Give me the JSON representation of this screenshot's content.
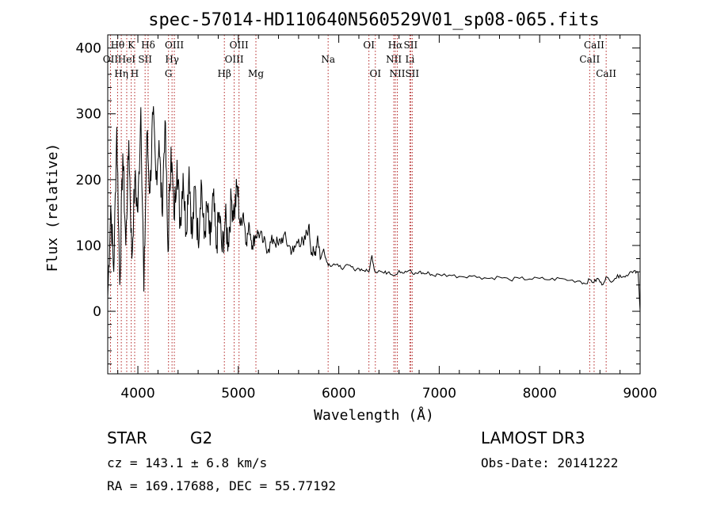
{
  "chart_data": {
    "type": "line",
    "title": "spec-57014-HD110640N560529V01_sp08-065.fits",
    "xlabel": "Wavelength (Å)",
    "ylabel": "Flux (relative)",
    "xlim": [
      3700,
      9000
    ],
    "ylim": [
      -95,
      420
    ],
    "x_ticks": [
      4000,
      5000,
      6000,
      7000,
      8000,
      9000
    ],
    "y_ticks": [
      0,
      100,
      200,
      300,
      400
    ],
    "series": [
      {
        "name": "flux",
        "color": "#000000",
        "x": [
          3700,
          3730,
          3760,
          3790,
          3820,
          3850,
          3880,
          3910,
          3940,
          3970,
          4000,
          4030,
          4060,
          4090,
          4120,
          4150,
          4180,
          4210,
          4240,
          4270,
          4300,
          4330,
          4360,
          4390,
          4420,
          4450,
          4480,
          4510,
          4540,
          4570,
          4600,
          4630,
          4660,
          4690,
          4720,
          4750,
          4780,
          4810,
          4840,
          4870,
          4900,
          4930,
          4960,
          4990,
          5020,
          5050,
          5080,
          5110,
          5140,
          5170,
          5200,
          5250,
          5300,
          5350,
          5400,
          5450,
          5500,
          5550,
          5600,
          5650,
          5700,
          5730,
          5760,
          5790,
          5820,
          5850,
          5880,
          5910,
          5950,
          6000,
          6050,
          6100,
          6150,
          6200,
          6250,
          6300,
          6330,
          6360,
          6400,
          6450,
          6500,
          6560,
          6600,
          6650,
          6700,
          6750,
          6800,
          6850,
          6900,
          6950,
          7000,
          7100,
          7200,
          7300,
          7400,
          7500,
          7600,
          7700,
          7800,
          7900,
          8000,
          8100,
          8200,
          8300,
          8400,
          8450,
          8500,
          8540,
          8580,
          8620,
          8660,
          8700,
          8750,
          8800,
          8850,
          8900,
          8950,
          8980,
          9000
        ],
        "values": [
          20,
          160,
          60,
          280,
          40,
          240,
          100,
          260,
          80,
          200,
          150,
          310,
          30,
          270,
          180,
          300,
          200,
          260,
          150,
          290,
          90,
          250,
          140,
          230,
          130,
          210,
          120,
          220,
          110,
          190,
          105,
          200,
          110,
          160,
          100,
          175,
          95,
          150,
          90,
          140,
          105,
          170,
          150,
          190,
          130,
          150,
          105,
          130,
          100,
          115,
          120,
          105,
          95,
          110,
          100,
          115,
          100,
          90,
          110,
          100,
          130,
          90,
          85,
          115,
          80,
          95,
          75,
          70,
          72,
          68,
          66,
          70,
          64,
          65,
          62,
          60,
          85,
          60,
          62,
          58,
          60,
          55,
          62,
          58,
          62,
          56,
          60,
          57,
          58,
          54,
          56,
          55,
          53,
          54,
          52,
          50,
          52,
          48,
          50,
          49,
          50,
          48,
          50,
          47,
          46,
          42,
          48,
          44,
          50,
          40,
          52,
          46,
          50,
          55,
          52,
          60,
          62,
          58,
          0
        ]
      }
    ],
    "lines": [
      {
        "label": "OII",
        "wavelength": 3727,
        "row": 2
      },
      {
        "label": "Hθ",
        "wavelength": 3798,
        "row": 1
      },
      {
        "label": "Hη",
        "wavelength": 3835,
        "row": 3
      },
      {
        "label": "HeI",
        "wavelength": 3889,
        "row": 2
      },
      {
        "label": "K",
        "wavelength": 3934,
        "row": 1
      },
      {
        "label": "H",
        "wavelength": 3968,
        "row": 3
      },
      {
        "label": "SII",
        "wavelength": 4072,
        "row": 2
      },
      {
        "label": "Hδ",
        "wavelength": 4102,
        "row": 1
      },
      {
        "label": "G",
        "wavelength": 4305,
        "row": 3
      },
      {
        "label": "Hγ",
        "wavelength": 4340,
        "row": 2
      },
      {
        "label": "OIII",
        "wavelength": 4363,
        "row": 1
      },
      {
        "label": "Hβ",
        "wavelength": 4861,
        "row": 3
      },
      {
        "label": "OIII",
        "wavelength": 4959,
        "row": 2
      },
      {
        "label": "OIII",
        "wavelength": 5007,
        "row": 1
      },
      {
        "label": "Mg",
        "wavelength": 5175,
        "row": 3
      },
      {
        "label": "Na",
        "wavelength": 5894,
        "row": 2
      },
      {
        "label": "OI",
        "wavelength": 6300,
        "row": 1
      },
      {
        "label": "OI",
        "wavelength": 6364,
        "row": 3
      },
      {
        "label": "NII",
        "wavelength": 6548,
        "row": 2
      },
      {
        "label": "Hα",
        "wavelength": 6563,
        "row": 1
      },
      {
        "label": "NII",
        "wavelength": 6583,
        "row": 3
      },
      {
        "label": "Li",
        "wavelength": 6708,
        "row": 2
      },
      {
        "label": "SII",
        "wavelength": 6716,
        "row": 1
      },
      {
        "label": "SII",
        "wavelength": 6731,
        "row": 3
      },
      {
        "label": "CaII",
        "wavelength": 8498,
        "row": 2
      },
      {
        "label": "CaII",
        "wavelength": 8542,
        "row": 1
      },
      {
        "label": "CaII",
        "wavelength": 8662,
        "row": 3
      }
    ],
    "line_color": "#b22222"
  },
  "info": {
    "object_class": "STAR",
    "subclass": "G2",
    "survey": "LAMOST DR3",
    "cz": "cz = 143.1 ± 6.8 km/s",
    "obs_date": "Obs-Date: 20141222",
    "coords": "RA = 169.17688, DEC =  55.77192"
  }
}
